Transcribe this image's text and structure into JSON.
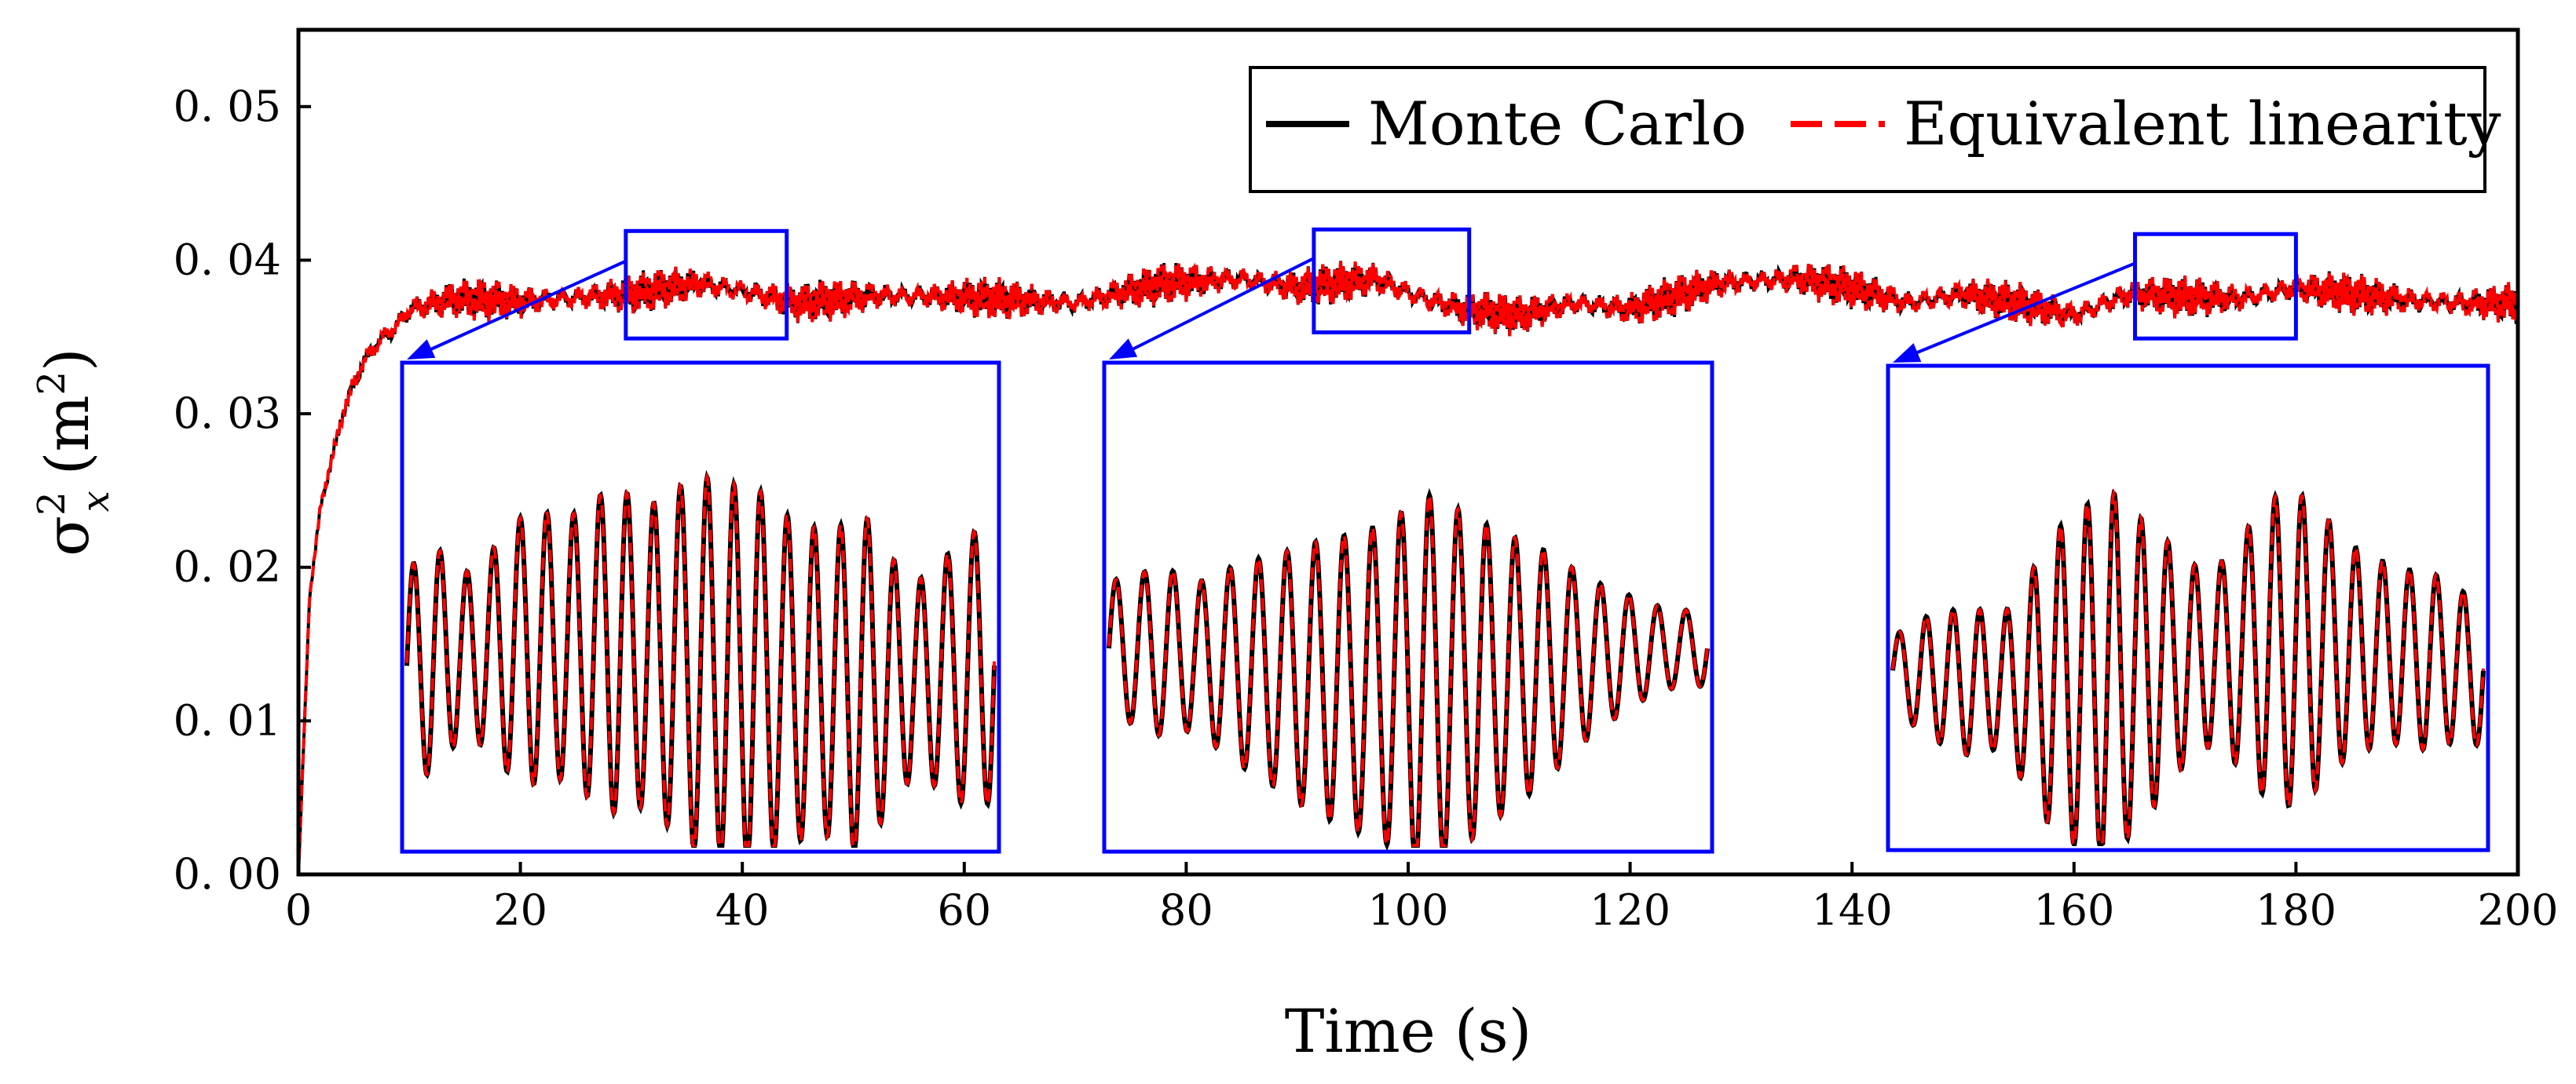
{
  "chart_data": {
    "type": "line",
    "title": "",
    "xlabel": "Time (s)",
    "ylabel": {
      "symbol": "σ",
      "sub": "x",
      "sup": "2",
      "unit_open": "(m",
      "unit_sup": "2",
      "unit_close": ")"
    },
    "xlim": [
      0,
      200
    ],
    "ylim": [
      0,
      0.055
    ],
    "xticks": [
      0,
      20,
      40,
      60,
      80,
      100,
      120,
      140,
      160,
      180,
      200
    ],
    "xtick_labels": [
      "0",
      "20",
      "40",
      "60",
      "80",
      "100",
      "120",
      "140",
      "160",
      "180",
      "200"
    ],
    "yticks": [
      0,
      0.01,
      0.02,
      0.03,
      0.04,
      0.05
    ],
    "ytick_labels": [
      "0. 00",
      "0. 01",
      "0. 02",
      "0. 03",
      "0. 04",
      "0. 05"
    ],
    "grid": false,
    "legend_position": "top-right",
    "series": [
      {
        "name": "Monte Carlo",
        "color": "#000000",
        "style": "solid"
      },
      {
        "name": "Equivalent linearity",
        "color": "#ff0000",
        "style": "dashed"
      }
    ],
    "envelope": {
      "description_free_points": true,
      "times": [
        0,
        1,
        2,
        3,
        4,
        5,
        6,
        7,
        8,
        9,
        10,
        14,
        20,
        30,
        36,
        40,
        45,
        52,
        60,
        70,
        78,
        85,
        90,
        97,
        101,
        105,
        110,
        115,
        120,
        128,
        135,
        140,
        145,
        150,
        155,
        160,
        165,
        170,
        175,
        180,
        185,
        190,
        195,
        200
      ],
      "values": [
        0,
        0.018,
        0.024,
        0.027,
        0.03,
        0.032,
        0.0335,
        0.0345,
        0.0352,
        0.0358,
        0.0368,
        0.0375,
        0.0373,
        0.0378,
        0.0385,
        0.038,
        0.0372,
        0.0377,
        0.0376,
        0.0372,
        0.0385,
        0.0388,
        0.0382,
        0.0388,
        0.0376,
        0.0368,
        0.0364,
        0.0372,
        0.0368,
        0.0385,
        0.0388,
        0.0382,
        0.0372,
        0.0378,
        0.0372,
        0.0364,
        0.0378,
        0.0376,
        0.0375,
        0.0382,
        0.0378,
        0.0374,
        0.0372,
        0.0372
      ]
    },
    "insets": [
      {
        "name": "inset-1",
        "source_xrange": [
          29.5,
          44
        ],
        "source_yrange": [
          0.0349,
          0.0419
        ],
        "amplitudes": [
          0.5,
          0.62,
          0.42,
          0.5,
          0.68,
          0.72,
          0.68,
          0.8,
          0.86,
          0.78,
          0.9,
          1.0,
          0.98,
          1.0,
          0.88,
          0.82,
          0.8,
          0.92,
          0.68,
          0.5,
          0.6,
          0.72
        ]
      },
      {
        "name": "inset-2",
        "source_xrange": [
          91.5,
          105.5
        ],
        "source_yrange": [
          0.0353,
          0.042
        ],
        "amplitudes": [
          0.35,
          0.4,
          0.45,
          0.38,
          0.48,
          0.56,
          0.62,
          0.7,
          0.75,
          0.8,
          0.86,
          1.0,
          0.92,
          0.82,
          0.72,
          0.64,
          0.52,
          0.4,
          0.32,
          0.24,
          0.2
        ]
      },
      {
        "name": "inset-3",
        "source_xrange": [
          165.5,
          180
        ],
        "source_yrange": [
          0.0349,
          0.0417
        ],
        "amplitudes": [
          0.18,
          0.3,
          0.36,
          0.4,
          0.34,
          0.55,
          0.8,
          0.9,
          1.0,
          0.84,
          0.7,
          0.52,
          0.46,
          0.62,
          0.8,
          0.84,
          0.72,
          0.56,
          0.5,
          0.46,
          0.48,
          0.4
        ]
      }
    ]
  }
}
